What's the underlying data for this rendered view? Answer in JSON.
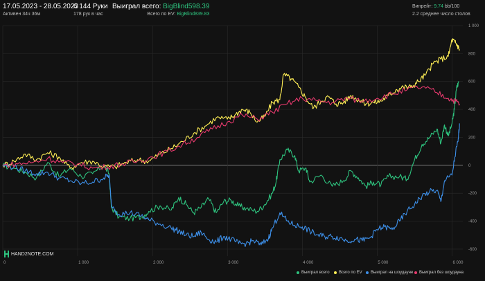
{
  "header": {
    "date_range": "17.05.2023 - 28.05.2023",
    "active": "Активен 34ч 36м",
    "hands": "6 144 Руки",
    "hands_per_hour": "178 рук в час",
    "won_total_label": "Выиграл всего:",
    "won_total_value": "BigBlind598.39",
    "ev_total_label": "Всего по EV:",
    "ev_total_value": "BigBlind839.83",
    "winrate_label": "Винрейт:",
    "winrate_value": "9.74",
    "winrate_suffix": "bb/100",
    "avg_tables": "2.2 среднее число столов"
  },
  "logo_text": "HAND2NOTE.COM",
  "colors": {
    "total": "#2ec27e",
    "ev": "#ffee55",
    "showdown": "#3d8fe8",
    "no_showdown": "#e83a6e",
    "grid": "#2a2a2a",
    "zero_line": "#8a8a8a"
  },
  "chart_data": {
    "type": "line",
    "x_ticks": [
      "0",
      "1 000",
      "2 000",
      "3 000",
      "4 000",
      "5 000",
      "6 000"
    ],
    "y_ticks": [
      "1 000",
      "800",
      "600",
      "400",
      "200",
      "0",
      "-200",
      "-400",
      "-600"
    ],
    "xlim": [
      0,
      6144
    ],
    "ylim": [
      -650,
      1000
    ],
    "series": [
      {
        "name": "Выиграл всего",
        "color": "#2ec27e",
        "points": [
          [
            0,
            0
          ],
          [
            150,
            -20
          ],
          [
            300,
            -50
          ],
          [
            450,
            -90
          ],
          [
            600,
            20
          ],
          [
            750,
            -80
          ],
          [
            900,
            -20
          ],
          [
            1050,
            -80
          ],
          [
            1200,
            -60
          ],
          [
            1350,
            0
          ],
          [
            1420,
            -60
          ],
          [
            1450,
            -300
          ],
          [
            1550,
            -370
          ],
          [
            1700,
            -380
          ],
          [
            1850,
            -370
          ],
          [
            1950,
            -330
          ],
          [
            2100,
            -290
          ],
          [
            2250,
            -320
          ],
          [
            2350,
            -230
          ],
          [
            2450,
            -280
          ],
          [
            2550,
            -340
          ],
          [
            2650,
            -300
          ],
          [
            2750,
            -240
          ],
          [
            2850,
            -340
          ],
          [
            2950,
            -260
          ],
          [
            3050,
            -250
          ],
          [
            3150,
            -290
          ],
          [
            3250,
            -310
          ],
          [
            3400,
            -330
          ],
          [
            3500,
            -280
          ],
          [
            3600,
            -200
          ],
          [
            3650,
            -120
          ],
          [
            3700,
            40
          ],
          [
            3800,
            110
          ],
          [
            3900,
            70
          ],
          [
            3950,
            -40
          ],
          [
            4050,
            -20
          ],
          [
            4100,
            -120
          ],
          [
            4250,
            -70
          ],
          [
            4400,
            -150
          ],
          [
            4550,
            -110
          ],
          [
            4650,
            -40
          ],
          [
            4750,
            -90
          ],
          [
            4850,
            -150
          ],
          [
            4950,
            -120
          ],
          [
            5050,
            -140
          ],
          [
            5150,
            -80
          ],
          [
            5300,
            -80
          ],
          [
            5400,
            -100
          ],
          [
            5500,
            40
          ],
          [
            5600,
            150
          ],
          [
            5700,
            200
          ],
          [
            5800,
            260
          ],
          [
            5850,
            160
          ],
          [
            5900,
            290
          ],
          [
            5950,
            210
          ],
          [
            6000,
            300
          ],
          [
            6030,
            400
          ],
          [
            6060,
            550
          ],
          [
            6090,
            600
          ]
        ]
      },
      {
        "name": "Всего по EV",
        "color": "#ffee55",
        "points": [
          [
            0,
            0
          ],
          [
            150,
            30
          ],
          [
            300,
            80
          ],
          [
            450,
            40
          ],
          [
            600,
            90
          ],
          [
            750,
            60
          ],
          [
            900,
            -20
          ],
          [
            1050,
            20
          ],
          [
            1200,
            30
          ],
          [
            1350,
            -10
          ],
          [
            1500,
            -10
          ],
          [
            1650,
            20
          ],
          [
            1800,
            40
          ],
          [
            1950,
            30
          ],
          [
            2100,
            80
          ],
          [
            2250,
            120
          ],
          [
            2400,
            170
          ],
          [
            2550,
            230
          ],
          [
            2700,
            280
          ],
          [
            2850,
            340
          ],
          [
            3000,
            330
          ],
          [
            3100,
            360
          ],
          [
            3200,
            400
          ],
          [
            3300,
            380
          ],
          [
            3400,
            310
          ],
          [
            3500,
            350
          ],
          [
            3600,
            450
          ],
          [
            3700,
            470
          ],
          [
            3750,
            650
          ],
          [
            3850,
            620
          ],
          [
            3950,
            560
          ],
          [
            4050,
            480
          ],
          [
            4150,
            410
          ],
          [
            4250,
            460
          ],
          [
            4350,
            490
          ],
          [
            4450,
            440
          ],
          [
            4550,
            450
          ],
          [
            4650,
            500
          ],
          [
            4750,
            470
          ],
          [
            4850,
            440
          ],
          [
            4950,
            450
          ],
          [
            5050,
            460
          ],
          [
            5150,
            500
          ],
          [
            5250,
            540
          ],
          [
            5350,
            560
          ],
          [
            5450,
            560
          ],
          [
            5550,
            600
          ],
          [
            5650,
            650
          ],
          [
            5750,
            730
          ],
          [
            5850,
            760
          ],
          [
            5950,
            780
          ],
          [
            6000,
            900
          ],
          [
            6040,
            880
          ],
          [
            6070,
            860
          ],
          [
            6100,
            830
          ]
        ]
      },
      {
        "name": "Выиграл на шоудауне",
        "color": "#3d8fe8",
        "points": [
          [
            0,
            0
          ],
          [
            150,
            -10
          ],
          [
            300,
            -40
          ],
          [
            450,
            -60
          ],
          [
            600,
            -50
          ],
          [
            750,
            -90
          ],
          [
            900,
            -110
          ],
          [
            1050,
            -130
          ],
          [
            1200,
            -120
          ],
          [
            1350,
            -90
          ],
          [
            1420,
            -70
          ],
          [
            1450,
            -280
          ],
          [
            1550,
            -350
          ],
          [
            1700,
            -340
          ],
          [
            1850,
            -360
          ],
          [
            1950,
            -390
          ],
          [
            2100,
            -420
          ],
          [
            2250,
            -450
          ],
          [
            2350,
            -470
          ],
          [
            2450,
            -500
          ],
          [
            2550,
            -510
          ],
          [
            2650,
            -480
          ],
          [
            2750,
            -530
          ],
          [
            2850,
            -550
          ],
          [
            2950,
            -510
          ],
          [
            3050,
            -530
          ],
          [
            3150,
            -560
          ],
          [
            3250,
            -560
          ],
          [
            3350,
            -540
          ],
          [
            3450,
            -570
          ],
          [
            3550,
            -520
          ],
          [
            3600,
            -450
          ],
          [
            3700,
            -340
          ],
          [
            3800,
            -400
          ],
          [
            3900,
            -430
          ],
          [
            4000,
            -440
          ],
          [
            4100,
            -470
          ],
          [
            4200,
            -500
          ],
          [
            4300,
            -510
          ],
          [
            4400,
            -510
          ],
          [
            4500,
            -520
          ],
          [
            4600,
            -540
          ],
          [
            4700,
            -530
          ],
          [
            4800,
            -540
          ],
          [
            4900,
            -520
          ],
          [
            5000,
            -460
          ],
          [
            5100,
            -440
          ],
          [
            5200,
            -460
          ],
          [
            5300,
            -400
          ],
          [
            5400,
            -330
          ],
          [
            5500,
            -280
          ],
          [
            5600,
            -220
          ],
          [
            5700,
            -190
          ],
          [
            5800,
            -180
          ],
          [
            5850,
            -260
          ],
          [
            5900,
            -110
          ],
          [
            6000,
            -70
          ],
          [
            6050,
            100
          ],
          [
            6080,
            170
          ],
          [
            6100,
            300
          ]
        ]
      },
      {
        "name": "Выиграл без шоудауна",
        "color": "#e83a6e",
        "points": [
          [
            0,
            0
          ],
          [
            200,
            10
          ],
          [
            400,
            20
          ],
          [
            600,
            50
          ],
          [
            800,
            20
          ],
          [
            1000,
            10
          ],
          [
            1200,
            -20
          ],
          [
            1400,
            -10
          ],
          [
            1600,
            10
          ],
          [
            1800,
            30
          ],
          [
            2000,
            60
          ],
          [
            2200,
            100
          ],
          [
            2400,
            150
          ],
          [
            2600,
            200
          ],
          [
            2800,
            260
          ],
          [
            3000,
            310
          ],
          [
            3200,
            360
          ],
          [
            3400,
            330
          ],
          [
            3600,
            380
          ],
          [
            3800,
            440
          ],
          [
            4000,
            480
          ],
          [
            4200,
            460
          ],
          [
            4400,
            450
          ],
          [
            4600,
            480
          ],
          [
            4800,
            460
          ],
          [
            5000,
            480
          ],
          [
            5200,
            510
          ],
          [
            5400,
            540
          ],
          [
            5600,
            560
          ],
          [
            5800,
            520
          ],
          [
            5950,
            480
          ],
          [
            6050,
            460
          ],
          [
            6100,
            440
          ]
        ]
      }
    ]
  },
  "legend": [
    {
      "label": "Выиграл всего",
      "color": "#2ec27e"
    },
    {
      "label": "Всего по EV",
      "color": "#ffee55"
    },
    {
      "label": "Выиграл на шоудауне",
      "color": "#3d8fe8"
    },
    {
      "label": "Выиграл без шоудауна",
      "color": "#e83a6e"
    }
  ]
}
